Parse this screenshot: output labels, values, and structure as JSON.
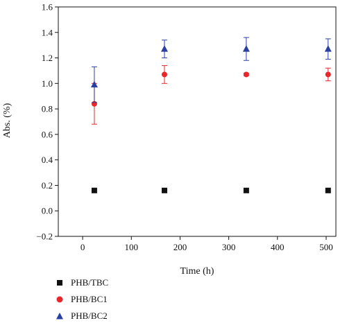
{
  "chart_data": {
    "type": "scatter",
    "xlabel": "Time (h)",
    "ylabel": "Abs. (%)",
    "xlim": [
      -50,
      520
    ],
    "ylim": [
      -0.2,
      1.6
    ],
    "xticks": [
      0,
      100,
      200,
      300,
      400,
      500
    ],
    "yticks": [
      -0.2,
      0.0,
      0.2,
      0.4,
      0.6,
      0.8,
      1.0,
      1.2,
      1.4,
      1.6
    ],
    "xtick_labels": [
      "0",
      "100",
      "200",
      "300",
      "400",
      "500"
    ],
    "ytick_labels": [
      "−0.2",
      "0.0",
      "0.2",
      "0.4",
      "0.6",
      "0.8",
      "1.0",
      "1.2",
      "1.4",
      "1.6"
    ],
    "grid": false,
    "legend_position": "bottom-left, below plot",
    "series": [
      {
        "name": "PHB/TBC",
        "marker": "square",
        "color": "#111111",
        "x": [
          24,
          168,
          336,
          504
        ],
        "y": [
          0.16,
          0.16,
          0.16,
          0.16
        ],
        "err": [
          0,
          0,
          0,
          0
        ]
      },
      {
        "name": "PHB/BC1",
        "marker": "circle",
        "color": "#e8262b",
        "x": [
          24,
          168,
          336,
          504
        ],
        "y": [
          0.84,
          1.07,
          1.07,
          1.07
        ],
        "err": [
          0.16,
          0.07,
          0.01,
          0.05
        ]
      },
      {
        "name": "PHB/BC2",
        "marker": "triangle",
        "color": "#2b3fa0",
        "x": [
          24,
          168,
          336,
          504
        ],
        "y": [
          0.99,
          1.27,
          1.27,
          1.27
        ],
        "err": [
          0.14,
          0.07,
          0.09,
          0.08
        ]
      }
    ]
  }
}
